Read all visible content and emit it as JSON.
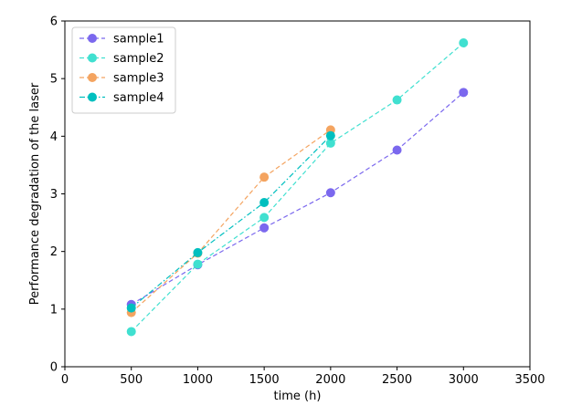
{
  "chart_data": {
    "type": "line",
    "xlabel": "time  (h)",
    "ylabel": "Performance degradation of the laser",
    "xlim": [
      0,
      3500
    ],
    "ylim": [
      0,
      6
    ],
    "xticks": [
      0,
      500,
      1000,
      1500,
      2000,
      2500,
      3000,
      3500
    ],
    "yticks": [
      0,
      1,
      2,
      3,
      4,
      5,
      6
    ],
    "grid": false,
    "legend_position": "top-left",
    "series": [
      {
        "name": "sample1",
        "color": "#7b68ee",
        "linestyle": "dashed",
        "x": [
          500,
          1000,
          1500,
          2000,
          2500,
          3000
        ],
        "y": [
          1.08,
          1.77,
          2.41,
          3.02,
          3.76,
          4.76
        ]
      },
      {
        "name": "sample2",
        "color": "#40e0d0",
        "linestyle": "dashed",
        "x": [
          500,
          1000,
          1500,
          2000,
          2500,
          3000
        ],
        "y": [
          0.61,
          1.78,
          2.59,
          3.88,
          4.63,
          5.62
        ]
      },
      {
        "name": "sample3",
        "color": "#f4a460",
        "linestyle": "dashed",
        "x": [
          500,
          1000,
          1500,
          2000
        ],
        "y": [
          0.94,
          1.97,
          3.29,
          4.11
        ]
      },
      {
        "name": "sample4",
        "color": "#00bfbf",
        "linestyle": "dashdot",
        "x": [
          500,
          1000,
          1500,
          2000
        ],
        "y": [
          1.02,
          1.98,
          2.85,
          4.01
        ]
      }
    ]
  }
}
